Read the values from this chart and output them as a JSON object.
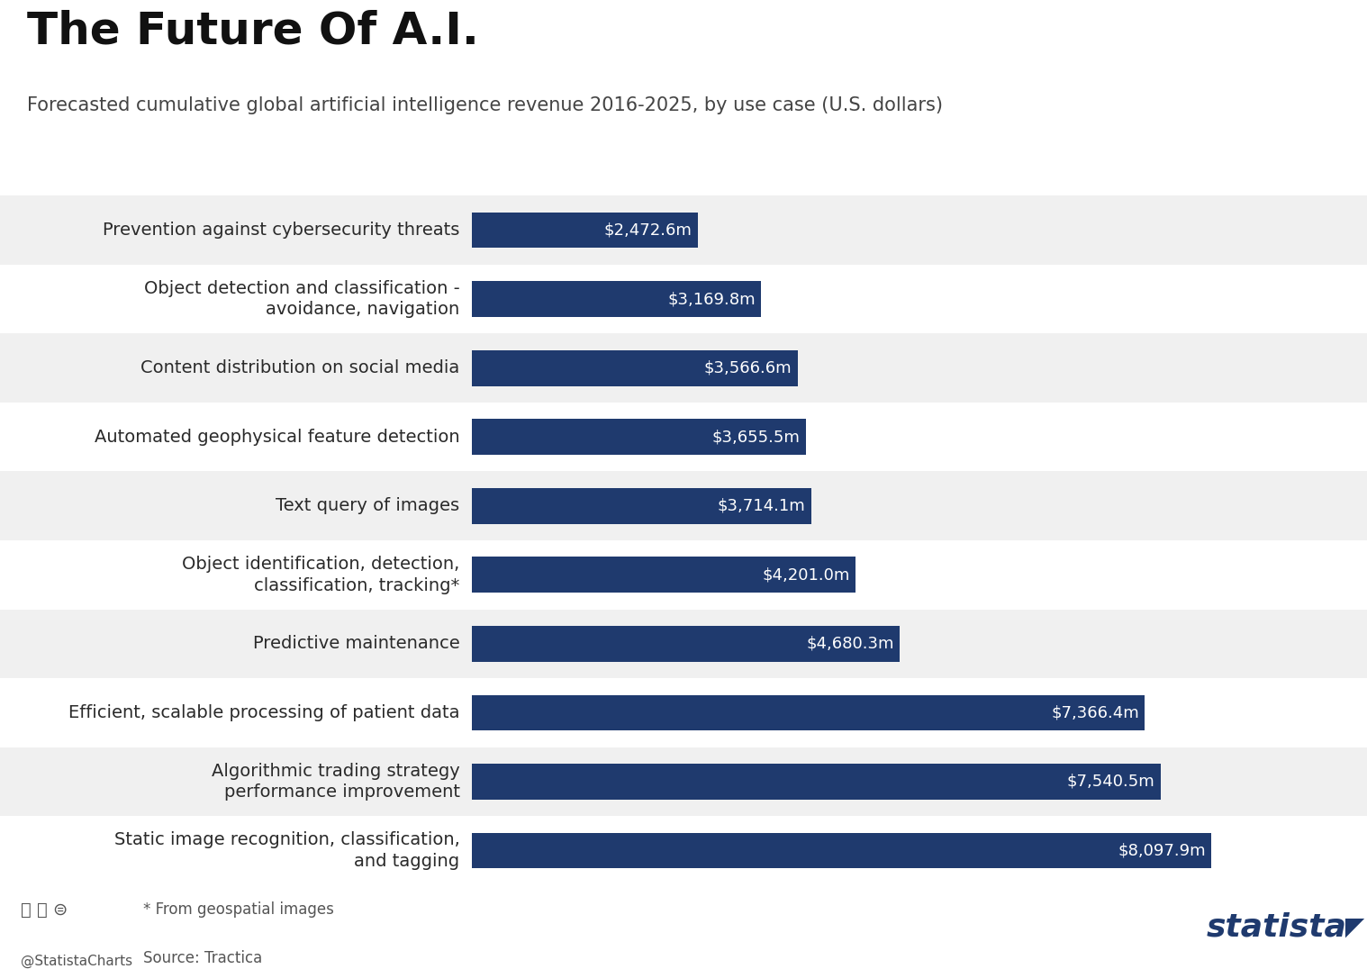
{
  "title": "The Future Of A.I.",
  "subtitle": "Forecasted cumulative global artificial intelligence revenue 2016-2025, by use case (U.S. dollars)",
  "categories": [
    "Static image recognition, classification,\nand tagging",
    "Algorithmic trading strategy\nperformance improvement",
    "Efficient, scalable processing of patient data",
    "Predictive maintenance",
    "Object identification, detection,\nclassification, tracking*",
    "Text query of images",
    "Automated geophysical feature detection",
    "Content distribution on social media",
    "Object detection and classification -\navoidance, navigation",
    "Prevention against cybersecurity threats"
  ],
  "values": [
    8097.9,
    7540.5,
    7366.4,
    4680.3,
    4201.0,
    3714.1,
    3655.5,
    3566.6,
    3169.8,
    2472.6
  ],
  "labels": [
    "$8,097.9m",
    "$7,540.5m",
    "$7,366.4m",
    "$4,680.3m",
    "$4,201.0m",
    "$3,714.1m",
    "$3,655.5m",
    "$3,566.6m",
    "$3,169.8m",
    "$2,472.6m"
  ],
  "bar_color": "#1f3a6e",
  "white_bg": "#ffffff",
  "stripe_colors": [
    "#f0f0f0",
    "#ffffff"
  ],
  "title_fontsize": 36,
  "subtitle_fontsize": 15,
  "label_fontsize": 14,
  "value_fontsize": 13,
  "footer_note": "* From geospatial images",
  "footer_source": "Source: Tractica",
  "credit_text": "@StatistaCharts",
  "statista_text": "statista",
  "xlim": [
    0,
    9500
  ]
}
